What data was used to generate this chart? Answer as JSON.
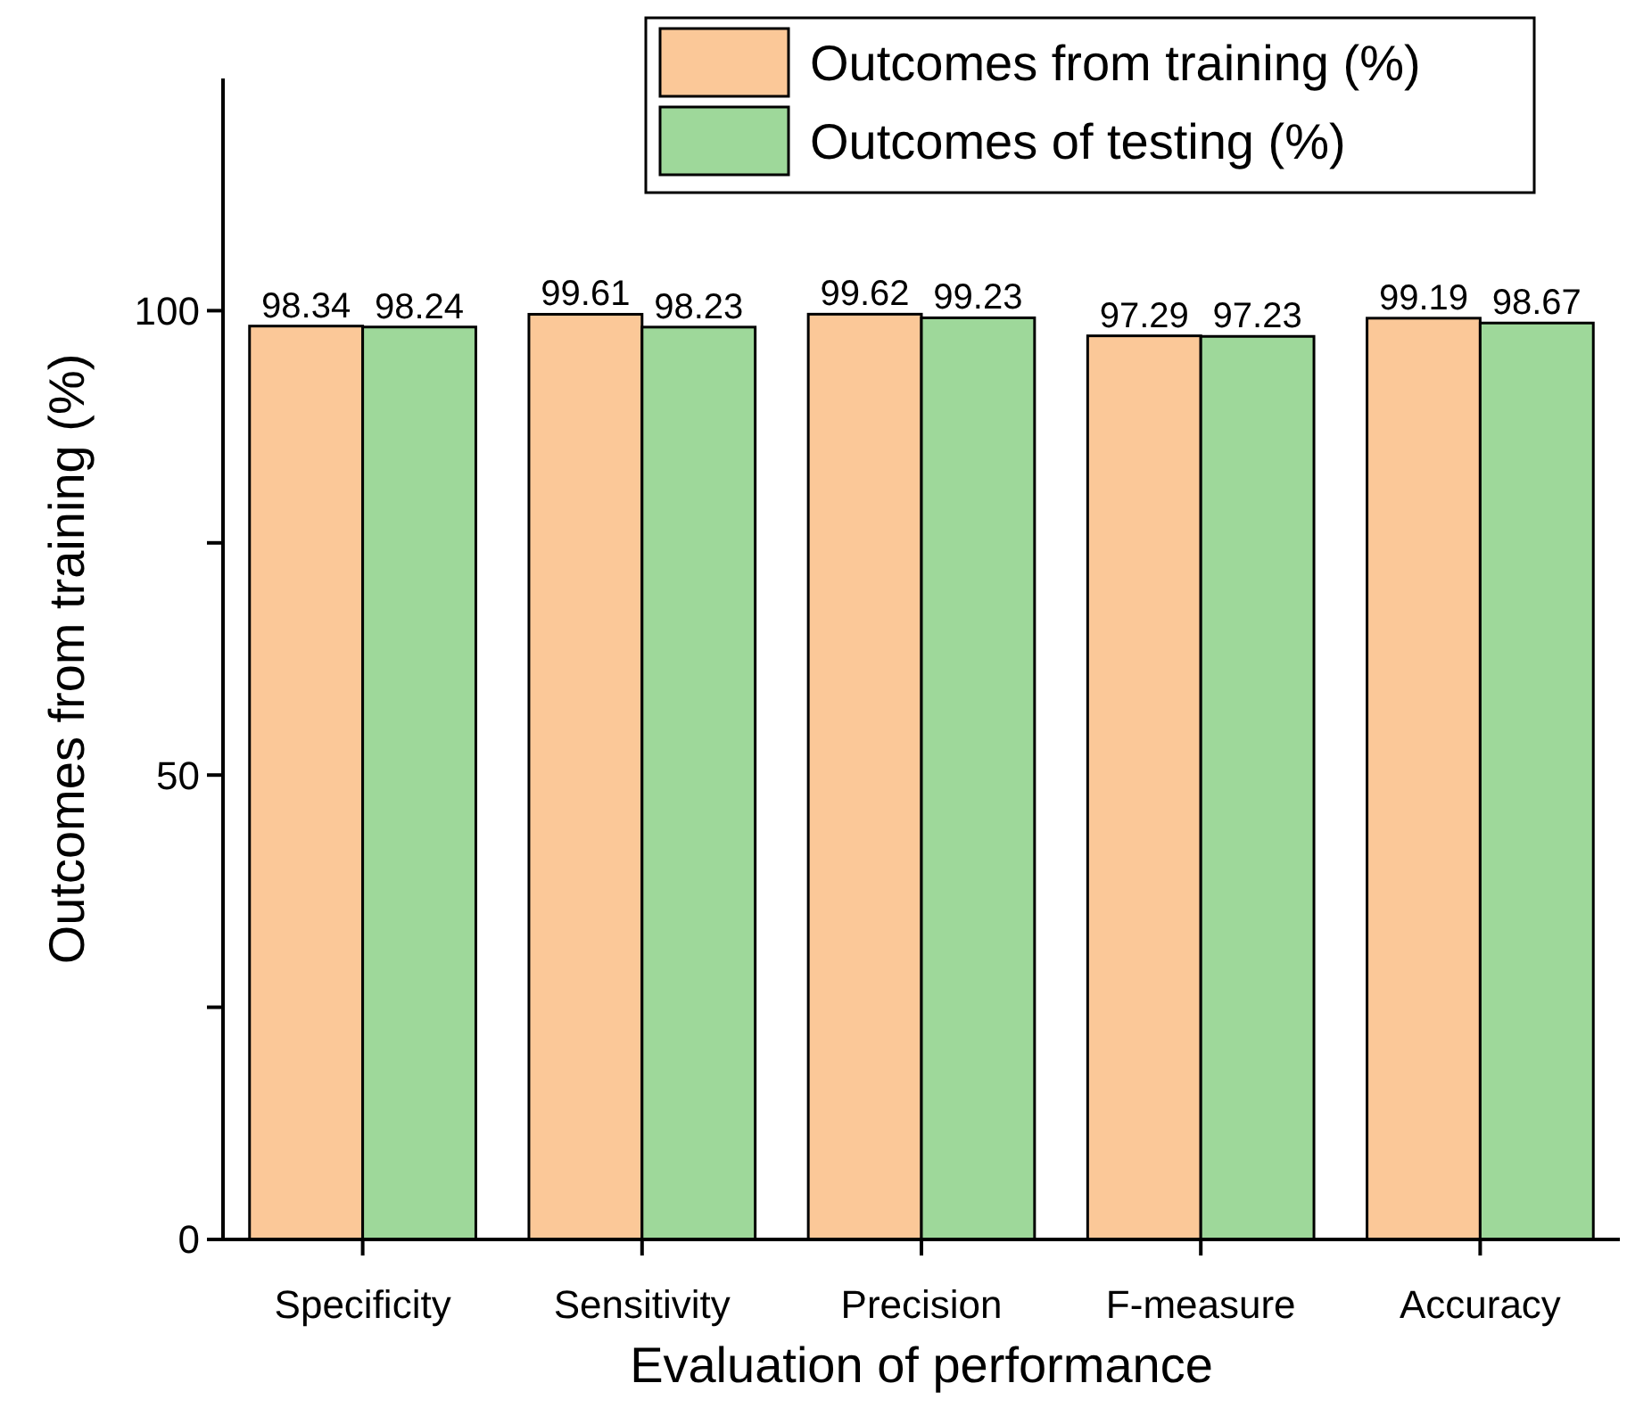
{
  "chart_data": {
    "type": "bar",
    "xlabel": "Evaluation of performance",
    "ylabel": "Outcomes from training (%)",
    "categories": [
      "Specificity",
      "Sensitivity",
      "Precision",
      "F-measure",
      "Accuracy"
    ],
    "series": [
      {
        "name": "Outcomes from training (%)",
        "color": "#fbc898",
        "values": [
          98.34,
          99.61,
          99.62,
          97.29,
          99.19
        ]
      },
      {
        "name": "Outcomes of testing (%)",
        "color": "#9ed89a",
        "values": [
          98.24,
          98.23,
          99.23,
          97.23,
          98.67
        ]
      }
    ],
    "ylim": [
      0,
      125
    ],
    "yticks": [
      0,
      {
        "value": 25,
        "label": null
      },
      50,
      {
        "value": 75,
        "label": null
      },
      100
    ],
    "data_labels": true,
    "legend": "top right",
    "grid": false
  }
}
